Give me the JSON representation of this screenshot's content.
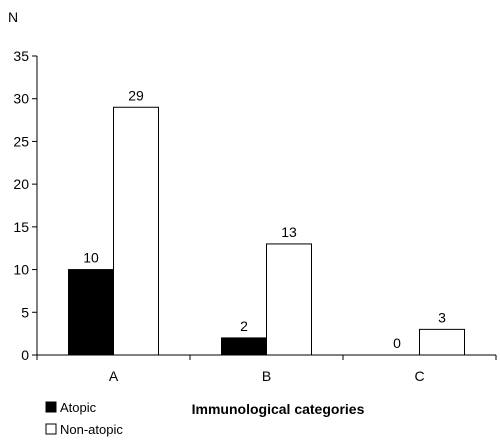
{
  "chart_data": {
    "type": "bar",
    "ylabel": "N",
    "xlabel": "Immunological categories",
    "categories": [
      "A",
      "B",
      "C"
    ],
    "ylim": [
      0,
      35
    ],
    "yticks": [
      0,
      5,
      10,
      15,
      20,
      25,
      30,
      35
    ],
    "grid": false,
    "legend_position": "bottom-left",
    "series": [
      {
        "name": "Atopic",
        "values": [
          10,
          2,
          0
        ],
        "value_labels": [
          "10",
          "2",
          "0"
        ],
        "color": "#000000"
      },
      {
        "name": "Non-atopic",
        "values": [
          29,
          13,
          3
        ],
        "value_labels": [
          "29",
          "13",
          "3"
        ],
        "color": "#ffffff"
      }
    ]
  }
}
